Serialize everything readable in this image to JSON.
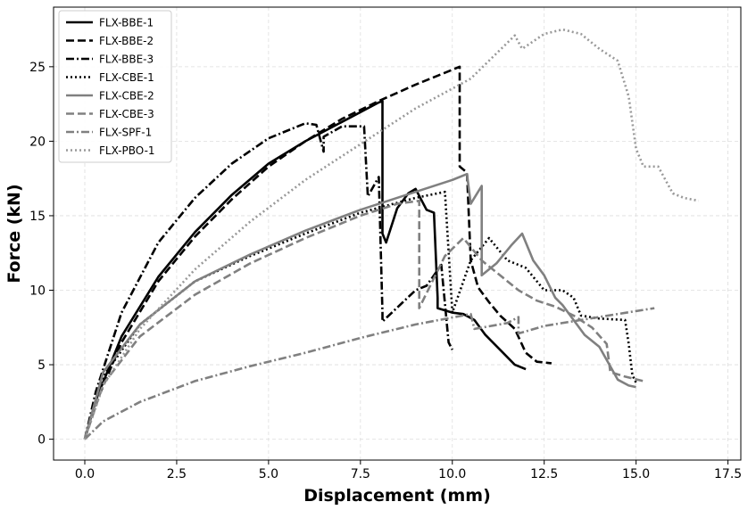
{
  "chart_data": {
    "type": "line",
    "title": "",
    "xlabel": "Displacement (mm)",
    "ylabel": "Force (kN)",
    "xlim": [
      -0.85,
      17.85
    ],
    "ylim": [
      -1.4,
      29.0
    ],
    "xticks": [
      "0.0",
      "2.5",
      "5.0",
      "7.5",
      "10.0",
      "12.5",
      "15.0",
      "17.5"
    ],
    "yticks": [
      "0",
      "5",
      "10",
      "15",
      "20",
      "25"
    ],
    "grid": true,
    "legend_position": "top-left",
    "series": [
      {
        "name": "FLX-BBE-1",
        "color": "#000000",
        "style": "solid",
        "points": [
          [
            0,
            0
          ],
          [
            0.3,
            2.6
          ],
          [
            1.0,
            6.9
          ],
          [
            2.0,
            10.9
          ],
          [
            3.0,
            13.9
          ],
          [
            4.0,
            16.4
          ],
          [
            5.0,
            18.5
          ],
          [
            6.0,
            20.0
          ],
          [
            7.0,
            21.3
          ],
          [
            8.0,
            22.6
          ],
          [
            8.1,
            22.7
          ],
          [
            8.1,
            13.8
          ],
          [
            8.2,
            13.2
          ],
          [
            8.5,
            15.5
          ],
          [
            8.8,
            16.5
          ],
          [
            9.0,
            16.8
          ],
          [
            9.3,
            15.4
          ],
          [
            9.5,
            15.2
          ],
          [
            9.6,
            9.5
          ],
          [
            9.6,
            8.8
          ],
          [
            10.0,
            8.5
          ],
          [
            10.3,
            8.4
          ],
          [
            10.6,
            8.0
          ],
          [
            10.9,
            7.0
          ],
          [
            11.3,
            6.0
          ],
          [
            11.7,
            5.0
          ],
          [
            12.0,
            4.7
          ]
        ]
      },
      {
        "name": "FLX-BBE-2",
        "color": "#000000",
        "style": "dashed",
        "points": [
          [
            0,
            0
          ],
          [
            0.3,
            2.4
          ],
          [
            1.0,
            6.5
          ],
          [
            2.0,
            10.6
          ],
          [
            3.0,
            13.6
          ],
          [
            4.0,
            16.1
          ],
          [
            5.0,
            18.3
          ],
          [
            6.0,
            20.0
          ],
          [
            7.0,
            21.5
          ],
          [
            8.0,
            22.7
          ],
          [
            9.0,
            23.8
          ],
          [
            10.0,
            24.8
          ],
          [
            10.2,
            25.0
          ],
          [
            10.2,
            18.3
          ],
          [
            10.4,
            17.9
          ],
          [
            10.5,
            12.0
          ],
          [
            10.7,
            10.2
          ],
          [
            11.0,
            9.2
          ],
          [
            11.3,
            8.3
          ],
          [
            11.7,
            7.4
          ],
          [
            12.0,
            5.8
          ],
          [
            12.3,
            5.2
          ],
          [
            12.7,
            5.1
          ]
        ]
      },
      {
        "name": "FLX-BBE-3",
        "color": "#000000",
        "style": "dashdot",
        "points": [
          [
            0,
            0
          ],
          [
            0.3,
            3.2
          ],
          [
            1.0,
            8.5
          ],
          [
            2.0,
            13.2
          ],
          [
            3.0,
            16.2
          ],
          [
            4.0,
            18.5
          ],
          [
            5.0,
            20.2
          ],
          [
            6.0,
            21.2
          ],
          [
            6.3,
            21.1
          ],
          [
            6.5,
            19.3
          ],
          [
            6.5,
            20.3
          ],
          [
            7.0,
            21.0
          ],
          [
            7.6,
            21.0
          ],
          [
            7.7,
            16.3
          ],
          [
            8.0,
            17.6
          ],
          [
            8.1,
            8.5
          ],
          [
            8.1,
            7.9
          ],
          [
            9.0,
            10.0
          ],
          [
            9.3,
            10.3
          ],
          [
            9.7,
            11.7
          ],
          [
            9.9,
            6.5
          ],
          [
            10.0,
            6.0
          ]
        ]
      },
      {
        "name": "FLX-CBE-1",
        "color": "#000000",
        "style": "dotted",
        "points": [
          [
            0,
            0
          ],
          [
            0.5,
            4.2
          ],
          [
            1.5,
            7.7
          ],
          [
            3.0,
            10.6
          ],
          [
            4.5,
            12.3
          ],
          [
            6.0,
            13.8
          ],
          [
            7.5,
            15.2
          ],
          [
            9.0,
            16.2
          ],
          [
            9.8,
            16.6
          ],
          [
            10.0,
            8.5
          ],
          [
            10.5,
            12.0
          ],
          [
            11.0,
            13.5
          ],
          [
            11.5,
            12.0
          ],
          [
            12.0,
            11.5
          ],
          [
            12.5,
            10.0
          ],
          [
            13.0,
            10.0
          ],
          [
            13.3,
            9.5
          ],
          [
            13.5,
            8.3
          ],
          [
            14.0,
            8.1
          ],
          [
            14.7,
            8.0
          ],
          [
            14.8,
            6.4
          ],
          [
            14.9,
            4.3
          ],
          [
            15.0,
            3.8
          ]
        ]
      },
      {
        "name": "FLX-CBE-2",
        "color": "#808080",
        "style": "solid",
        "points": [
          [
            0,
            0
          ],
          [
            0.5,
            4.5
          ],
          [
            1.5,
            7.7
          ],
          [
            3.0,
            10.6
          ],
          [
            4.5,
            12.4
          ],
          [
            6.0,
            14.0
          ],
          [
            7.5,
            15.4
          ],
          [
            9.0,
            16.6
          ],
          [
            10.0,
            17.4
          ],
          [
            10.4,
            17.8
          ],
          [
            10.5,
            15.8
          ],
          [
            10.8,
            17.0
          ],
          [
            10.8,
            11.0
          ],
          [
            11.2,
            11.8
          ],
          [
            11.6,
            13.0
          ],
          [
            11.9,
            13.8
          ],
          [
            12.2,
            12.0
          ],
          [
            12.5,
            11.0
          ],
          [
            12.8,
            9.5
          ],
          [
            13.0,
            9.0
          ],
          [
            13.3,
            8.0
          ],
          [
            13.6,
            7.0
          ],
          [
            14.0,
            6.2
          ],
          [
            14.5,
            4.0
          ],
          [
            14.8,
            3.6
          ],
          [
            15.0,
            3.5
          ]
        ]
      },
      {
        "name": "FLX-CBE-3",
        "color": "#808080",
        "style": "dashed",
        "points": [
          [
            0,
            0
          ],
          [
            0.5,
            3.7
          ],
          [
            1.5,
            6.9
          ],
          [
            3.0,
            9.7
          ],
          [
            4.5,
            11.8
          ],
          [
            6.0,
            13.5
          ],
          [
            7.5,
            15.0
          ],
          [
            8.5,
            15.8
          ],
          [
            9.1,
            16.0
          ],
          [
            9.1,
            8.8
          ],
          [
            9.3,
            9.8
          ],
          [
            9.8,
            12.3
          ],
          [
            10.3,
            13.5
          ],
          [
            10.8,
            12.0
          ],
          [
            11.3,
            11.0
          ],
          [
            11.8,
            10.0
          ],
          [
            12.3,
            9.3
          ],
          [
            12.8,
            8.9
          ],
          [
            13.3,
            8.3
          ],
          [
            13.8,
            7.5
          ],
          [
            14.2,
            6.4
          ],
          [
            14.3,
            4.5
          ],
          [
            14.7,
            4.2
          ],
          [
            15.2,
            3.9
          ]
        ]
      },
      {
        "name": "FLX-SPF-1",
        "color": "#808080",
        "style": "dashdot",
        "points": [
          [
            0,
            0
          ],
          [
            0.5,
            1.2
          ],
          [
            1.5,
            2.5
          ],
          [
            3.0,
            3.9
          ],
          [
            4.5,
            4.9
          ],
          [
            6.0,
            5.8
          ],
          [
            7.5,
            6.8
          ],
          [
            9.0,
            7.7
          ],
          [
            10.5,
            8.4
          ],
          [
            10.6,
            7.4
          ],
          [
            11.5,
            7.8
          ],
          [
            11.8,
            8.2
          ],
          [
            11.8,
            7.1
          ],
          [
            12.5,
            7.6
          ],
          [
            13.5,
            8.0
          ],
          [
            14.5,
            8.4
          ],
          [
            15.5,
            8.8
          ]
        ]
      },
      {
        "name": "FLX-PBO-1",
        "color": "#999999",
        "style": "dotted",
        "points": [
          [
            0,
            0
          ],
          [
            0.5,
            3.6
          ],
          [
            1.5,
            7.4
          ],
          [
            3.0,
            11.4
          ],
          [
            4.5,
            14.6
          ],
          [
            6.0,
            17.4
          ],
          [
            7.5,
            19.8
          ],
          [
            9.0,
            22.2
          ],
          [
            10.5,
            24.2
          ],
          [
            11.7,
            27.1
          ],
          [
            11.9,
            26.2
          ],
          [
            12.5,
            27.2
          ],
          [
            13.0,
            27.5
          ],
          [
            13.5,
            27.2
          ],
          [
            14.0,
            26.2
          ],
          [
            14.5,
            25.4
          ],
          [
            14.8,
            23.0
          ],
          [
            15.0,
            19.5
          ],
          [
            15.2,
            18.3
          ],
          [
            15.6,
            18.3
          ],
          [
            16.0,
            16.5
          ],
          [
            16.3,
            16.2
          ],
          [
            16.7,
            16.0
          ]
        ]
      }
    ]
  }
}
